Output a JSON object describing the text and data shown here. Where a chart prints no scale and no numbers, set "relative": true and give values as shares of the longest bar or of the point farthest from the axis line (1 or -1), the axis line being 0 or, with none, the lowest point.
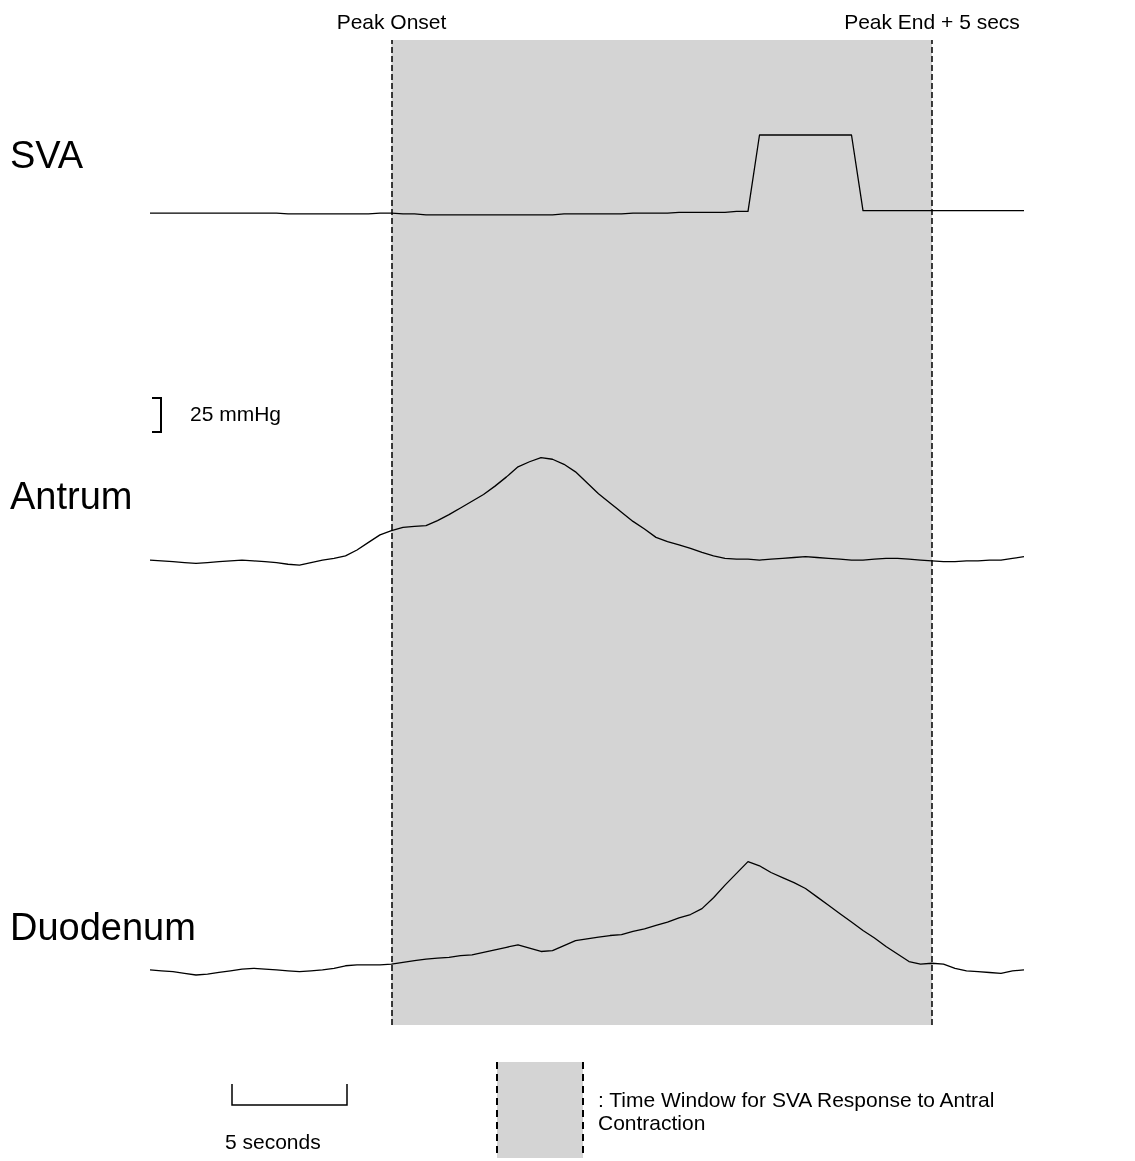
{
  "chart_data": {
    "type": "line",
    "relative": true,
    "marker": "none",
    "line_style": "solid",
    "categories": [
      null,
      null,
      null,
      null,
      null,
      null,
      null,
      null,
      null,
      null,
      null,
      null,
      null,
      null,
      null,
      null,
      null,
      null,
      null,
      null,
      null,
      null,
      null,
      null,
      null,
      null,
      null,
      null,
      null,
      null,
      null,
      null,
      null,
      null,
      null,
      null,
      null,
      null,
      null,
      null,
      null,
      null,
      null,
      null,
      null,
      null,
      null,
      null,
      null,
      null,
      null,
      null,
      null,
      null,
      null,
      null,
      null,
      null,
      null,
      null,
      null,
      null,
      null,
      null,
      null,
      null,
      null,
      null,
      null,
      null,
      null,
      null,
      null,
      null,
      null,
      null,
      null
    ],
    "series": [
      {
        "name": "SVA",
        "color": "#000000",
        "values": [
          0.907,
          0.907,
          0.907,
          0.907,
          0.907,
          0.907,
          0.907,
          0.907,
          0.907,
          0.907,
          0.907,
          0.907,
          0.906,
          0.906,
          0.906,
          0.906,
          0.906,
          0.906,
          0.906,
          0.906,
          0.907,
          0.907,
          0.906,
          0.906,
          0.905,
          0.905,
          0.905,
          0.905,
          0.905,
          0.905,
          0.905,
          0.905,
          0.905,
          0.905,
          0.905,
          0.905,
          0.906,
          0.906,
          0.906,
          0.906,
          0.906,
          0.906,
          0.907,
          0.907,
          0.907,
          0.907,
          0.908,
          0.908,
          0.908,
          0.908,
          0.908,
          0.909,
          0.909,
          1.0,
          1.0,
          1.0,
          1.0,
          1.0,
          1.0,
          1.0,
          1.0,
          1.0,
          0.91,
          0.91,
          0.91,
          0.91,
          0.91,
          0.91,
          0.91,
          0.91,
          0.91,
          0.91,
          0.91,
          0.91,
          0.91,
          0.91,
          0.91
        ]
      },
      {
        "name": "Antrum",
        "color": "#000000",
        "values": [
          0.494,
          0.493,
          0.492,
          0.491,
          0.49,
          0.491,
          0.492,
          0.493,
          0.494,
          0.493,
          0.492,
          0.491,
          0.489,
          0.488,
          0.491,
          0.494,
          0.496,
          0.499,
          0.506,
          0.515,
          0.524,
          0.529,
          0.533,
          0.534,
          0.535,
          0.541,
          0.548,
          0.556,
          0.564,
          0.572,
          0.582,
          0.593,
          0.605,
          0.611,
          0.616,
          0.614,
          0.608,
          0.599,
          0.586,
          0.573,
          0.562,
          0.551,
          0.54,
          0.531,
          0.521,
          0.516,
          0.512,
          0.508,
          0.503,
          0.499,
          0.496,
          0.495,
          0.495,
          0.494,
          0.495,
          0.496,
          0.497,
          0.498,
          0.497,
          0.496,
          0.495,
          0.494,
          0.494,
          0.495,
          0.496,
          0.496,
          0.495,
          0.494,
          0.493,
          0.492,
          0.492,
          0.493,
          0.493,
          0.494,
          0.494,
          0.496,
          0.498
        ]
      },
      {
        "name": "Duodenum",
        "color": "#000000",
        "values": [
          0.006,
          0.005,
          0.004,
          0.002,
          0,
          0.001,
          0.003,
          0.005,
          0.007,
          0.008,
          0.007,
          0.006,
          0.005,
          0.004,
          0.005,
          0.006,
          0.008,
          0.011,
          0.012,
          0.012,
          0.012,
          0.013,
          0.015,
          0.017,
          0.019,
          0.02,
          0.021,
          0.023,
          0.024,
          0.027,
          0.03,
          0.033,
          0.036,
          0.032,
          0.028,
          0.029,
          0.035,
          0.041,
          0.043,
          0.045,
          0.047,
          0.048,
          0.052,
          0.055,
          0.059,
          0.063,
          0.068,
          0.072,
          0.079,
          0.092,
          0.107,
          0.121,
          0.135,
          0.13,
          0.122,
          0.116,
          0.11,
          0.103,
          0.093,
          0.083,
          0.073,
          0.063,
          0.053,
          0.044,
          0.034,
          0.025,
          0.016,
          0.013,
          0.014,
          0.013,
          0.008,
          0.005,
          0.004,
          0.003,
          0.002,
          0.005,
          0.006
        ]
      }
    ],
    "annotations": [
      "Peak Onset",
      "Peak End + 5 secs",
      "25 mmHg",
      "5 seconds",
      ": Time Window for SVA Response to Antral Contraction"
    ]
  }
}
